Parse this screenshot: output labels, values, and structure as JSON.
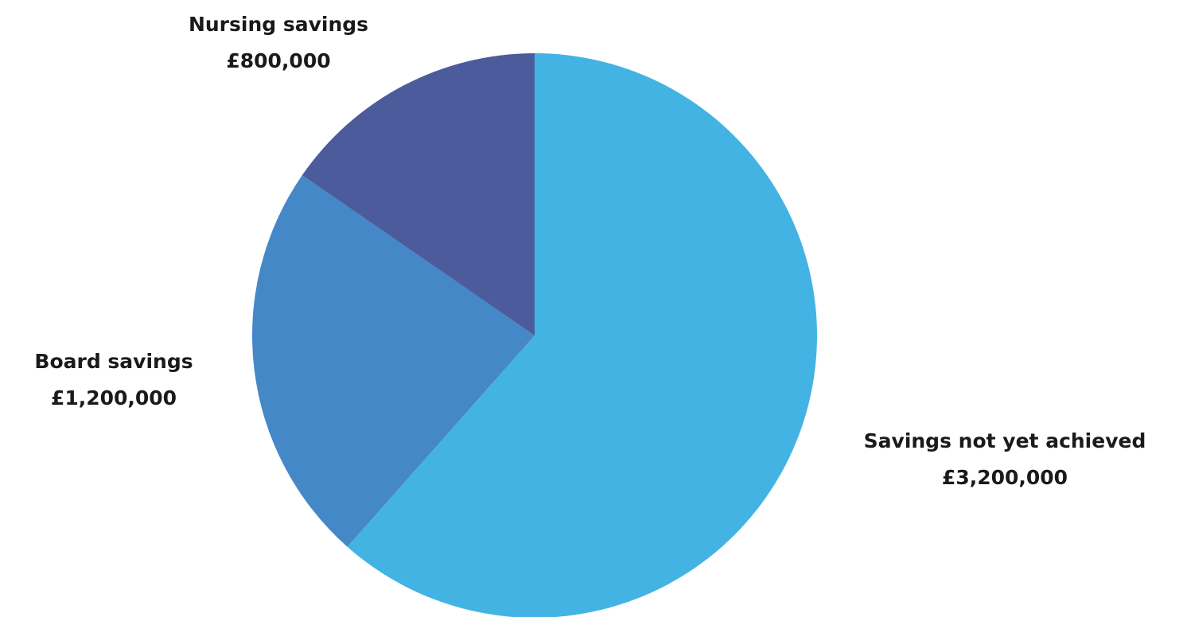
{
  "chart_data": {
    "type": "pie",
    "title": "",
    "slices": [
      {
        "label": "Savings not yet achieved",
        "value_label": "£3,200,000",
        "value": 3200000,
        "color": "#43b3e4"
      },
      {
        "label": "Board savings",
        "value_label": "£1,200,000",
        "value": 1200000,
        "color": "#4488c7"
      },
      {
        "label": "Nursing savings",
        "value_label": "£800,000",
        "value": 800000,
        "color": "#4b5b9b"
      }
    ],
    "start_angle_deg": 0,
    "direction": "clockwise"
  }
}
